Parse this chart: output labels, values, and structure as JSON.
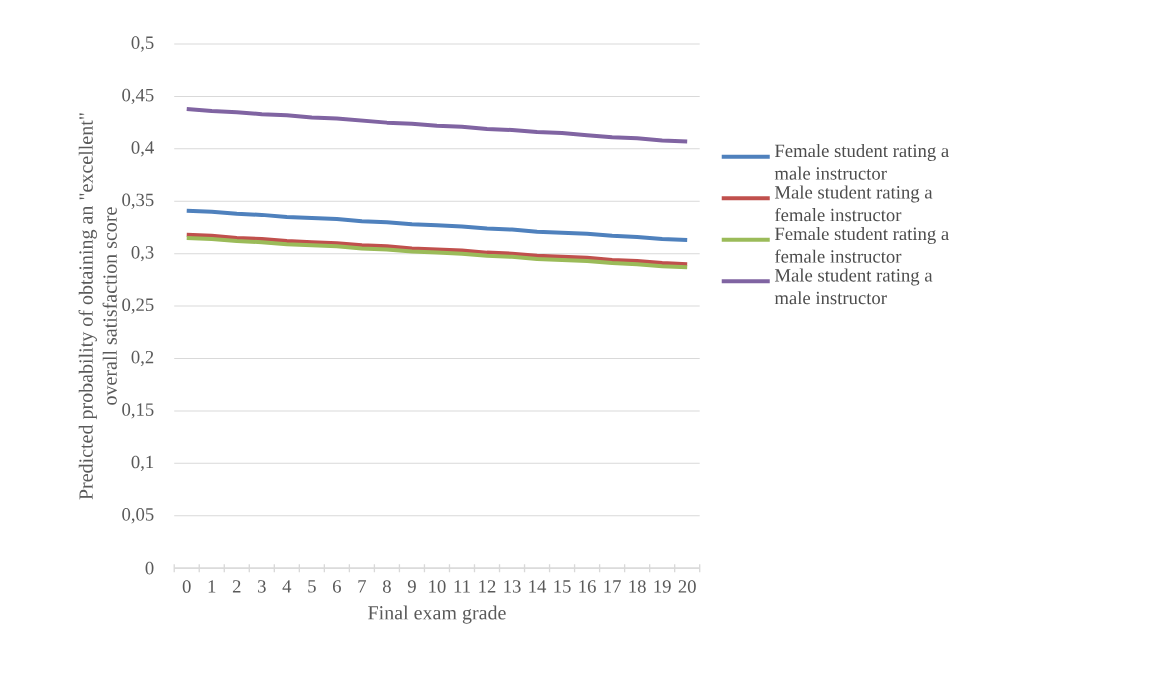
{
  "chart_data": {
    "type": "line",
    "xlabel": "Final exam grade",
    "ylabel": "Predicted probability of obtaining an \"excellent\" overall satisfaction score",
    "categories": [
      "0",
      "1",
      "2",
      "3",
      "4",
      "5",
      "6",
      "7",
      "8",
      "9",
      "10",
      "11",
      "12",
      "13",
      "14",
      "15",
      "16",
      "17",
      "18",
      "19",
      "20"
    ],
    "series": [
      {
        "name": "Female student rating a male instructor",
        "color": "#4f81bd",
        "values": [
          0.341,
          0.34,
          0.338,
          0.337,
          0.335,
          0.334,
          0.333,
          0.331,
          0.33,
          0.328,
          0.327,
          0.326,
          0.324,
          0.323,
          0.321,
          0.32,
          0.319,
          0.317,
          0.316,
          0.314,
          0.313
        ]
      },
      {
        "name": "Male student rating a female instructor",
        "color": "#c0504d",
        "values": [
          0.318,
          0.317,
          0.315,
          0.314,
          0.312,
          0.311,
          0.31,
          0.308,
          0.307,
          0.305,
          0.304,
          0.303,
          0.301,
          0.3,
          0.298,
          0.297,
          0.296,
          0.294,
          0.293,
          0.291,
          0.29
        ]
      },
      {
        "name": "Female student rating a female instructor",
        "color": "#9bbb59",
        "values": [
          0.315,
          0.314,
          0.312,
          0.311,
          0.309,
          0.308,
          0.307,
          0.305,
          0.304,
          0.302,
          0.301,
          0.3,
          0.298,
          0.297,
          0.295,
          0.294,
          0.293,
          0.291,
          0.29,
          0.288,
          0.287
        ]
      },
      {
        "name": "Male student rating a male instructor",
        "color": "#8064a2",
        "values": [
          0.438,
          0.436,
          0.435,
          0.433,
          0.432,
          0.43,
          0.429,
          0.427,
          0.425,
          0.424,
          0.422,
          0.421,
          0.419,
          0.418,
          0.416,
          0.415,
          0.413,
          0.411,
          0.41,
          0.408,
          0.407
        ]
      }
    ],
    "ylim": [
      0,
      0.5
    ],
    "yticks": [
      {
        "value": 0,
        "label": "0"
      },
      {
        "value": 0.05,
        "label": "0,05"
      },
      {
        "value": 0.1,
        "label": "0,1"
      },
      {
        "value": 0.15,
        "label": "0,15"
      },
      {
        "value": 0.2,
        "label": "0,2"
      },
      {
        "value": 0.25,
        "label": "0,25"
      },
      {
        "value": 0.3,
        "label": "0,3"
      },
      {
        "value": 0.35,
        "label": "0,35"
      },
      {
        "value": 0.4,
        "label": "0,4"
      },
      {
        "value": 0.45,
        "label": "0,45"
      },
      {
        "value": 0.5,
        "label": "0,5"
      }
    ],
    "grid": "y",
    "legend": "right",
    "marker": "none",
    "line_style": "solid"
  }
}
